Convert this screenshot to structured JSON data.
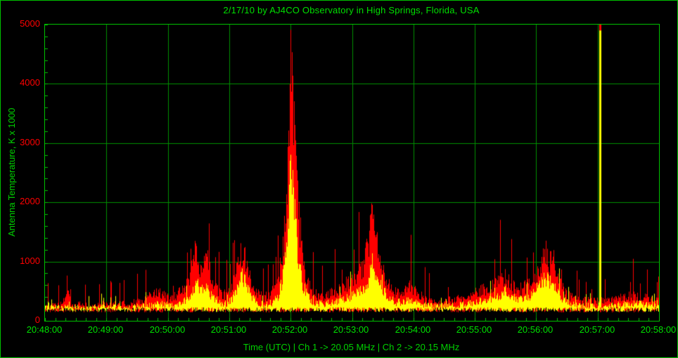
{
  "frame": {
    "background": "#000000",
    "border_color": "#00c000"
  },
  "chart_data": {
    "type": "line",
    "title": "2/17/10  by  AJ4CO Observatory  in  High Springs, Florida, USA",
    "xlabel": "Time (UTC)  |  Ch 1 -> 20.05 MHz  |  Ch 2 -> 20.15 MHz",
    "ylabel": "Antenna Temperature, K x 1000",
    "ylim": [
      0,
      5000
    ],
    "xlim_seconds": [
      0,
      600
    ],
    "grid": true,
    "x_tick_labels": [
      "20:48:00",
      "20:49:00",
      "20:50:00",
      "20:51:00",
      "20:52:00",
      "20:53:00",
      "20:54:00",
      "20:55:00",
      "20:56:00",
      "20:57:00",
      "20:58:00"
    ],
    "y_tick_labels": [
      "5000",
      "4000",
      "3000",
      "2000",
      "1000",
      "0"
    ],
    "x_major_step_seconds": 60,
    "x_minor_step_seconds": 10,
    "y_major_step": 1000,
    "y_minor_step": 200,
    "colors": {
      "background": "#000000",
      "grid": "#009000",
      "axis": "#00c000",
      "title_text": "#00e000",
      "x_tick_text": "#00e000",
      "y_tick_text": "#ff0000",
      "ch1": "#ff0000",
      "ch2": "#ffff00"
    },
    "series": [
      {
        "name": "Ch 1 -> 20.05 MHz",
        "color": "#ff0000",
        "keypoints": [
          [
            0,
            260
          ],
          [
            15,
            280
          ],
          [
            22,
            520
          ],
          [
            25,
            300
          ],
          [
            40,
            280
          ],
          [
            60,
            300
          ],
          [
            80,
            300
          ],
          [
            95,
            380
          ],
          [
            105,
            450
          ],
          [
            112,
            520
          ],
          [
            118,
            420
          ],
          [
            125,
            420
          ],
          [
            132,
            520
          ],
          [
            140,
            650
          ],
          [
            148,
            1300
          ],
          [
            152,
            950
          ],
          [
            157,
            1250
          ],
          [
            162,
            800
          ],
          [
            170,
            500
          ],
          [
            178,
            450
          ],
          [
            186,
            800
          ],
          [
            193,
            1300
          ],
          [
            197,
            1050
          ],
          [
            200,
            800
          ],
          [
            207,
            480
          ],
          [
            215,
            420
          ],
          [
            222,
            520
          ],
          [
            228,
            750
          ],
          [
            233,
            1400
          ],
          [
            237,
            2600
          ],
          [
            240,
            4450
          ],
          [
            242,
            4000
          ],
          [
            245,
            3000
          ],
          [
            248,
            1900
          ],
          [
            252,
            1100
          ],
          [
            257,
            650
          ],
          [
            263,
            480
          ],
          [
            272,
            430
          ],
          [
            282,
            520
          ],
          [
            292,
            620
          ],
          [
            302,
            760
          ],
          [
            310,
            950
          ],
          [
            316,
            1350
          ],
          [
            320,
            2050
          ],
          [
            324,
            1400
          ],
          [
            329,
            1000
          ],
          [
            336,
            640
          ],
          [
            344,
            480
          ],
          [
            352,
            560
          ],
          [
            357,
            620
          ],
          [
            363,
            520
          ],
          [
            372,
            380
          ],
          [
            382,
            330
          ],
          [
            392,
            360
          ],
          [
            402,
            380
          ],
          [
            412,
            420
          ],
          [
            422,
            500
          ],
          [
            432,
            580
          ],
          [
            442,
            680
          ],
          [
            450,
            780
          ],
          [
            456,
            640
          ],
          [
            462,
            540
          ],
          [
            470,
            620
          ],
          [
            478,
            760
          ],
          [
            484,
            980
          ],
          [
            489,
            1250
          ],
          [
            493,
            1020
          ],
          [
            497,
            1120
          ],
          [
            502,
            760
          ],
          [
            508,
            520
          ],
          [
            516,
            400
          ],
          [
            526,
            360
          ],
          [
            536,
            360
          ],
          [
            546,
            360
          ],
          [
            556,
            360
          ],
          [
            566,
            420
          ],
          [
            576,
            450
          ],
          [
            584,
            420
          ],
          [
            592,
            380
          ],
          [
            600,
            360
          ]
        ]
      },
      {
        "name": "Ch 2 -> 20.15 MHz",
        "color": "#ffff00",
        "keypoints": [
          [
            0,
            235
          ],
          [
            20,
            250
          ],
          [
            40,
            235
          ],
          [
            60,
            245
          ],
          [
            80,
            245
          ],
          [
            100,
            270
          ],
          [
            112,
            300
          ],
          [
            125,
            280
          ],
          [
            140,
            380
          ],
          [
            148,
            700
          ],
          [
            152,
            520
          ],
          [
            157,
            650
          ],
          [
            162,
            450
          ],
          [
            170,
            330
          ],
          [
            178,
            300
          ],
          [
            186,
            480
          ],
          [
            193,
            800
          ],
          [
            197,
            620
          ],
          [
            200,
            500
          ],
          [
            207,
            320
          ],
          [
            215,
            290
          ],
          [
            222,
            330
          ],
          [
            228,
            450
          ],
          [
            233,
            800
          ],
          [
            237,
            1500
          ],
          [
            240,
            2600
          ],
          [
            242,
            2300
          ],
          [
            245,
            1700
          ],
          [
            248,
            1050
          ],
          [
            252,
            640
          ],
          [
            257,
            420
          ],
          [
            263,
            320
          ],
          [
            272,
            300
          ],
          [
            282,
            330
          ],
          [
            292,
            380
          ],
          [
            302,
            450
          ],
          [
            310,
            540
          ],
          [
            316,
            720
          ],
          [
            320,
            1080
          ],
          [
            324,
            780
          ],
          [
            329,
            580
          ],
          [
            336,
            400
          ],
          [
            344,
            320
          ],
          [
            352,
            360
          ],
          [
            357,
            400
          ],
          [
            363,
            340
          ],
          [
            372,
            280
          ],
          [
            382,
            260
          ],
          [
            392,
            270
          ],
          [
            402,
            280
          ],
          [
            412,
            300
          ],
          [
            422,
            330
          ],
          [
            432,
            380
          ],
          [
            442,
            440
          ],
          [
            450,
            520
          ],
          [
            456,
            430
          ],
          [
            462,
            370
          ],
          [
            470,
            410
          ],
          [
            478,
            500
          ],
          [
            484,
            640
          ],
          [
            489,
            800
          ],
          [
            493,
            660
          ],
          [
            497,
            720
          ],
          [
            502,
            500
          ],
          [
            508,
            360
          ],
          [
            516,
            290
          ],
          [
            526,
            270
          ],
          [
            536,
            270
          ],
          [
            546,
            270
          ],
          [
            556,
            270
          ],
          [
            566,
            300
          ],
          [
            576,
            320
          ],
          [
            584,
            300
          ],
          [
            592,
            280
          ],
          [
            600,
            270
          ]
        ]
      }
    ],
    "spike": {
      "t": 543,
      "ch1": 5000,
      "ch2": 4900
    }
  }
}
